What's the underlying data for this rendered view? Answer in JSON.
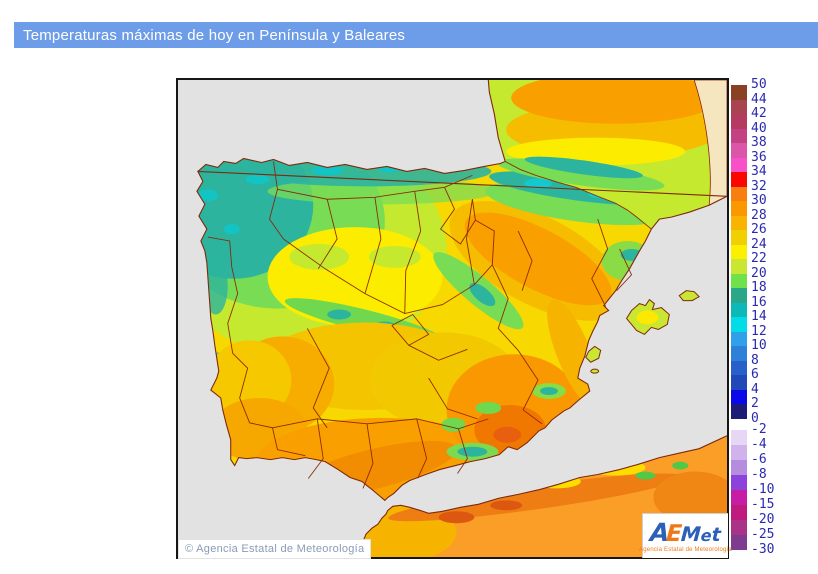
{
  "header": {
    "title": "Temperaturas máximas de hoy en Península y Baleares",
    "bg_color": "#6D9CE8",
    "text_color": "#FFFFFF"
  },
  "map": {
    "copyright": "© Agencia Estatal de Meteorología",
    "sea_color": "#E2E2E2",
    "no_data_color": "#F5E6C0",
    "boundary_color": "#7E2A0C"
  },
  "legend": {
    "positive": {
      "tick_labels": [
        "50",
        "44",
        "42",
        "40",
        "38",
        "36",
        "34",
        "32",
        "30",
        "28",
        "26",
        "24",
        "22",
        "20",
        "18",
        "16",
        "14",
        "12",
        "10",
        "8",
        "6",
        "4",
        "2",
        "0"
      ],
      "colors": [
        "#8A4022",
        "#A84450",
        "#B43A62",
        "#C44184",
        "#DB56A8",
        "#F850C8",
        "#F80800",
        "#F87E10",
        "#FA9800",
        "#F8B400",
        "#F0D000",
        "#FAF000",
        "#C8E632",
        "#6EE14B",
        "#28A888",
        "#0CB8B8",
        "#00DCE8",
        "#30A0E8",
        "#2E80D8",
        "#2660C8",
        "#2048B8",
        "#0808E8",
        "#1C1C78"
      ]
    },
    "negative": {
      "tick_labels": [
        "-2",
        "-4",
        "-6",
        "-8",
        "-10",
        "-15",
        "-20",
        "-25",
        "-30"
      ],
      "colors": [
        "#E6D8F4",
        "#D0B2EC",
        "#B68CDE",
        "#8D42DC",
        "#C71DA5",
        "#BF1A7E",
        "#A93487",
        "#7F3B8F"
      ]
    },
    "label_color": "#2A2AB0"
  },
  "logo": {
    "letters": [
      {
        "ch": "A",
        "color": "#2B5FB8"
      },
      {
        "ch": "E",
        "color": "#F07818"
      },
      {
        "ch": "M",
        "color": "#2B5FB8"
      },
      {
        "ch": "e",
        "color": "#2B5FB8"
      },
      {
        "ch": "t",
        "color": "#2B5FB8"
      }
    ],
    "subtext": "Agencia Estatal de Meteorología",
    "subtext_color": "#F07818"
  }
}
